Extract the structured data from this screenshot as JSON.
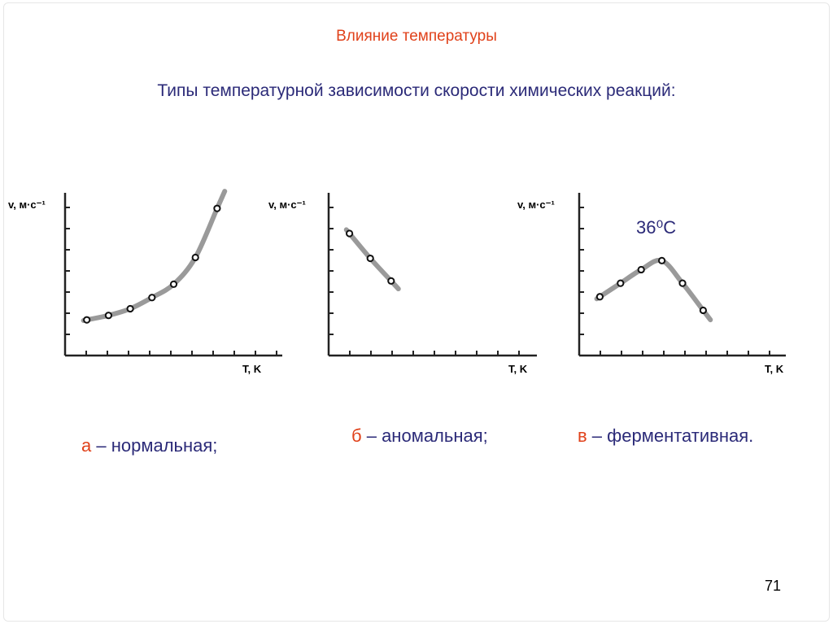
{
  "colors": {
    "accent": "#e0421b",
    "text": "#2b2a78",
    "axis": "#222222",
    "curve": "#9a9a9a"
  },
  "title": "Влияние температуры",
  "subtitle": "Типы температурной зависимости скорости химических реакций:",
  "page_number": "71",
  "chart_data": [
    {
      "type": "scatter",
      "ylabel": "v, м·с⁻¹",
      "xlabel": "T, K",
      "x": [
        1,
        2,
        3,
        4,
        5,
        6,
        7
      ],
      "y": [
        1.6,
        1.8,
        2.1,
        2.6,
        3.2,
        4.4,
        6.6
      ],
      "xlim": [
        0,
        10
      ],
      "ylim": [
        0,
        7.3
      ],
      "caption_letter": "а",
      "caption_text": " – нормальная;"
    },
    {
      "type": "scatter",
      "ylabel": "v, м·с⁻¹",
      "xlabel": "T, K",
      "x": [
        1,
        2,
        3
      ],
      "y": [
        5.4,
        4.3,
        3.3
      ],
      "xlim": [
        0,
        10
      ],
      "ylim": [
        0,
        7.2
      ],
      "caption_letter": "б",
      "caption_text": " – аномальная;"
    },
    {
      "type": "scatter",
      "ylabel": "v, м·с⁻¹",
      "xlabel": "T, K",
      "x": [
        1,
        2,
        3,
        4,
        5,
        6
      ],
      "y": [
        2.6,
        3.2,
        3.8,
        4.2,
        3.2,
        2.0
      ],
      "xlim": [
        0,
        10
      ],
      "ylim": [
        0,
        7.2
      ],
      "annotation": "36⁰С",
      "caption_letter": "в",
      "caption_text": " – ферментативная."
    }
  ]
}
